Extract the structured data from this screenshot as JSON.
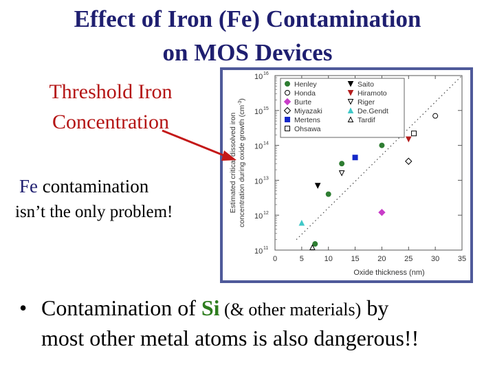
{
  "slide": {
    "title_line1": "Effect of Iron (Fe) Contamination",
    "title_line2": "on MOS Devices",
    "threshold_line1": "Threshold Iron",
    "threshold_line2": "Concentration",
    "fe_word": "Fe",
    "fe_rest": " contamination",
    "fe_line2": "isn’t the only problem!",
    "bullet_symbol": "•",
    "bullet_part1": "Contamination of ",
    "bullet_si": "Si",
    "bullet_paren": " (& other materials)",
    "bullet_part2": " by",
    "bullet_line2": "most other  metal atoms is also dangerous!!"
  },
  "colors": {
    "title": "#1f1f70",
    "threshold_text": "#b41414",
    "arrow": "#c41818",
    "si": "#2e7d1e",
    "chart_frame": "#4f5a9a"
  },
  "chart_data": {
    "type": "scatter",
    "xlabel": "Oxide thickness (nm)",
    "ylabel_line1": "Estimated critical dissolved iron",
    "ylabel_line2": "concentration during oxide growth (cm",
    "ylabel_sup": "-3",
    "ylabel_close": ")",
    "xlim": [
      0,
      35
    ],
    "x_ticks": [
      0,
      5,
      10,
      15,
      20,
      25,
      30,
      35
    ],
    "y_scale": "log",
    "ylim": [
      100000000000.0,
      1e+16
    ],
    "y_ticks": [
      {
        "value": 100000000000.0,
        "mant": "10",
        "exp": "11"
      },
      {
        "value": 1000000000000.0,
        "mant": "10",
        "exp": "12"
      },
      {
        "value": 10000000000000.0,
        "mant": "10",
        "exp": "13"
      },
      {
        "value": 100000000000000.0,
        "mant": "10",
        "exp": "14"
      },
      {
        "value": 1000000000000000.0,
        "mant": "10",
        "exp": "15"
      },
      {
        "value": 1e+16,
        "mant": "10",
        "exp": "16"
      }
    ],
    "trend_line": {
      "style": "dotted",
      "from": [
        4,
        200000000000.0
      ],
      "to": [
        35,
        1e+16
      ]
    },
    "legend_position": "top-right",
    "series": [
      {
        "name": "Henley",
        "marker": "filled-circle",
        "color": "#2e7d32",
        "points": [
          [
            7.5,
            150000000000.0
          ],
          [
            10,
            4000000000000.0
          ],
          [
            12.5,
            30000000000000.0
          ],
          [
            20,
            100000000000000.0
          ]
        ]
      },
      {
        "name": "Honda",
        "marker": "open-circle",
        "color": "#000000",
        "points": [
          [
            30,
            700000000000000.0
          ]
        ]
      },
      {
        "name": "Burte",
        "marker": "filled-diamond",
        "color": "#c83cc8",
        "points": [
          [
            20,
            1200000000000.0
          ]
        ]
      },
      {
        "name": "Miyazaki",
        "marker": "open-diamond",
        "color": "#000000",
        "points": [
          [
            25,
            35000000000000.0
          ]
        ]
      },
      {
        "name": "Mertens",
        "marker": "filled-square",
        "color": "#1428c8",
        "points": [
          [
            15,
            45000000000000.0
          ]
        ]
      },
      {
        "name": "Ohsawa",
        "marker": "open-square",
        "color": "#000000",
        "points": [
          [
            26,
            220000000000000.0
          ]
        ]
      },
      {
        "name": "Saito",
        "marker": "filled-triangle-down",
        "color": "#000000",
        "points": [
          [
            8,
            7000000000000.0
          ]
        ]
      },
      {
        "name": "Hiramoto",
        "marker": "filled-triangle-down",
        "color": "#b41e1e",
        "points": [
          [
            25,
            150000000000000.0
          ]
        ]
      },
      {
        "name": "Riger",
        "marker": "open-triangle-down",
        "color": "#000000",
        "points": [
          [
            12.5,
            16000000000000.0
          ]
        ]
      },
      {
        "name": "De.Gendt",
        "marker": "filled-triangle-up",
        "color": "#40c8c8",
        "points": [
          [
            5,
            600000000000.0
          ]
        ]
      },
      {
        "name": "Tardif",
        "marker": "open-triangle-up",
        "color": "#000000",
        "points": [
          [
            7,
            120000000000.0
          ]
        ]
      }
    ]
  }
}
